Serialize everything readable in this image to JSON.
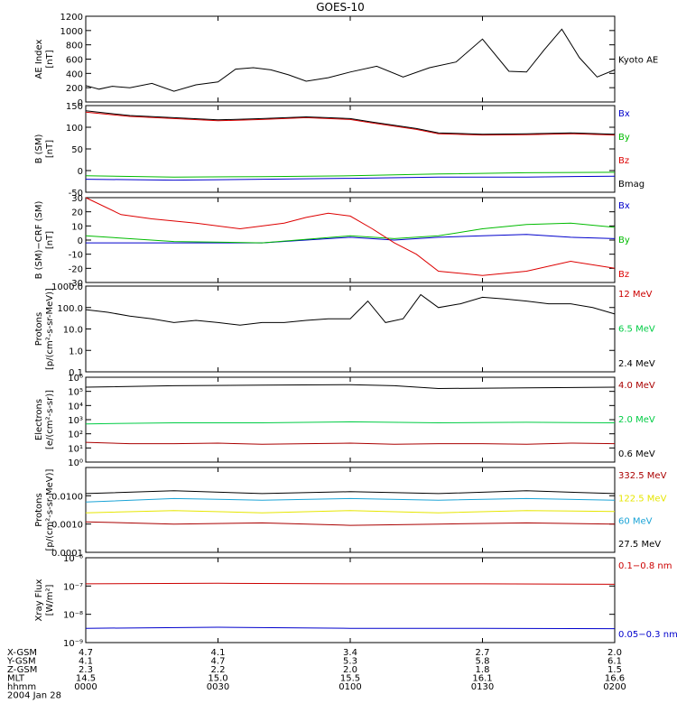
{
  "title": "GOES-10",
  "panels": [
    {
      "id": "ae",
      "ylabel": [
        "AE Index",
        "[nT]"
      ],
      "scale": "linear",
      "ylim": [
        0,
        1200
      ],
      "ticks": [
        "0",
        "200",
        "400",
        "600",
        "800",
        "1000",
        "1200"
      ],
      "tickvals": [
        0,
        200,
        400,
        600,
        800,
        1000,
        1200
      ],
      "legend": [
        {
          "text": "Kyoto AE",
          "color": "#000000"
        }
      ]
    },
    {
      "id": "bsm",
      "ylabel": [
        "B (SM)",
        "[nT]"
      ],
      "scale": "linear",
      "ylim": [
        -50,
        150
      ],
      "ticks": [
        "-50",
        "0",
        "50",
        "100",
        "150"
      ],
      "tickvals": [
        -50,
        0,
        50,
        100,
        150
      ],
      "legend": [
        {
          "text": "Bx",
          "color": "#0000cc"
        },
        {
          "text": "By",
          "color": "#00bb00"
        },
        {
          "text": "Bz",
          "color": "#dd0000"
        },
        {
          "text": "Bmag",
          "color": "#000000"
        }
      ]
    },
    {
      "id": "bsmcrf",
      "ylabel": [
        "B (SM)−CRF (SM)",
        "[nT]"
      ],
      "scale": "linear",
      "ylim": [
        -30,
        30
      ],
      "ticks": [
        "-30",
        "-20",
        "-10",
        "0",
        "10",
        "20",
        "30"
      ],
      "tickvals": [
        -30,
        -20,
        -10,
        0,
        10,
        20,
        30
      ],
      "legend": [
        {
          "text": "Bx",
          "color": "#0000cc"
        },
        {
          "text": "By",
          "color": "#00bb00"
        },
        {
          "text": "Bz",
          "color": "#dd0000"
        }
      ]
    },
    {
      "id": "protons_lo",
      "ylabel": [
        "Protons",
        "[p/(cm²-s-sr-MeV)]"
      ],
      "scale": "log",
      "ylim": [
        0.1,
        1000
      ],
      "ticks": [
        "0.1",
        "1.0",
        "10.0",
        "100.0",
        "1000.0"
      ],
      "tickvals": [
        0.1,
        1,
        10,
        100,
        1000
      ],
      "legend": [
        {
          "text": "12 MeV",
          "color": "#cc0000"
        },
        {
          "text": "6.5 MeV",
          "color": "#00cc44"
        },
        {
          "text": "2.4 MeV",
          "color": "#000000"
        }
      ]
    },
    {
      "id": "electrons",
      "ylabel": [
        "Electrons",
        "[e/(cm²-s-sr)]"
      ],
      "scale": "log",
      "ylim": [
        1,
        1000000
      ],
      "ticks": [
        "10⁰",
        "10¹",
        "10²",
        "10³",
        "10⁴",
        "10⁵",
        "10⁶"
      ],
      "tickvals": [
        1,
        10,
        100,
        1000,
        10000,
        100000,
        1000000
      ],
      "legend": [
        {
          "text": "4.0 MeV",
          "color": "#aa0000"
        },
        {
          "text": "2.0 MeV",
          "color": "#00cc44"
        },
        {
          "text": "0.6 MeV",
          "color": "#000000"
        }
      ]
    },
    {
      "id": "protons_hi",
      "ylabel": [
        "Protons",
        "[p/(cm²-s-sr-MeV)]"
      ],
      "scale": "log",
      "ylim": [
        0.0001,
        0.1
      ],
      "ticks": [
        "0.0001",
        "0.0010",
        "0.0100"
      ],
      "tickvals": [
        0.0001,
        0.001,
        0.01
      ],
      "legend": [
        {
          "text": "332.5 MeV",
          "color": "#aa0000"
        },
        {
          "text": "122.5 MeV",
          "color": "#e6e600"
        },
        {
          "text": "60 MeV",
          "color": "#1aa3d6"
        },
        {
          "text": "27.5 MeV",
          "color": "#000000"
        }
      ]
    },
    {
      "id": "xray",
      "ylabel": [
        "Xray Flux",
        "[W/m²]"
      ],
      "scale": "log",
      "ylim": [
        1e-09,
        1e-06
      ],
      "ticks": [
        "10⁻⁹",
        "10⁻⁸",
        "10⁻⁷",
        "10⁻⁶"
      ],
      "tickvals": [
        1e-09,
        1e-08,
        1e-07,
        1e-06
      ],
      "legend": [
        {
          "text": "0.1−0.8 nm",
          "color": "#cc0000"
        },
        {
          "text": "0.05−0.3 nm",
          "color": "#0000cc"
        }
      ]
    }
  ],
  "xaxis": {
    "rows": [
      {
        "label": "X-GSM",
        "values": [
          "4.7",
          "4.1",
          "3.4",
          "2.7",
          "2.0"
        ]
      },
      {
        "label": "Y-GSM",
        "values": [
          "4.1",
          "4.7",
          "5.3",
          "5.8",
          "6.1"
        ]
      },
      {
        "label": "Z-GSM",
        "values": [
          "2.3",
          "2.2",
          "2.0",
          "1.8",
          "1.5"
        ]
      },
      {
        "label": "MLT",
        "values": [
          "14.5",
          "15.0",
          "15.5",
          "16.1",
          "16.6"
        ]
      },
      {
        "label": "hhmm",
        "values": [
          "0000",
          "0030",
          "0100",
          "0130",
          "0200"
        ]
      }
    ],
    "date": "2004 Jan 28"
  },
  "chart_data": [
    {
      "type": "line",
      "title": "GOES-10",
      "ylabel": "AE Index [nT]",
      "xlabel": "hhmm",
      "xlim": [
        0,
        120
      ],
      "x_unit": "minutes after 0000 UT",
      "ylim": [
        0,
        1200
      ],
      "series": [
        {
          "name": "Kyoto AE",
          "color": "#000000",
          "x": [
            0,
            3,
            6,
            10,
            15,
            20,
            25,
            30,
            34,
            38,
            42,
            46,
            50,
            55,
            60,
            66,
            72,
            78,
            84,
            90,
            96,
            100,
            104,
            108,
            112,
            116,
            120
          ],
          "values": [
            230,
            180,
            220,
            200,
            260,
            150,
            240,
            280,
            460,
            480,
            450,
            380,
            290,
            340,
            420,
            500,
            350,
            480,
            560,
            880,
            430,
            420,
            730,
            1020,
            620,
            350,
            450
          ]
        }
      ]
    },
    {
      "type": "line",
      "ylabel": "B (SM) [nT]",
      "xlim": [
        0,
        120
      ],
      "ylim": [
        -50,
        150
      ],
      "series": [
        {
          "name": "Bx",
          "color": "#0000cc",
          "x": [
            0,
            20,
            40,
            60,
            80,
            100,
            120
          ],
          "values": [
            -20,
            -22,
            -20,
            -18,
            -15,
            -15,
            -13
          ]
        },
        {
          "name": "By",
          "color": "#00bb00",
          "x": [
            0,
            20,
            40,
            60,
            80,
            100,
            120
          ],
          "values": [
            -12,
            -15,
            -14,
            -12,
            -8,
            -5,
            -4
          ]
        },
        {
          "name": "Bz",
          "color": "#dd0000",
          "x": [
            0,
            10,
            20,
            30,
            40,
            50,
            55,
            60,
            65,
            75,
            80,
            90,
            100,
            110,
            120
          ],
          "values": [
            135,
            125,
            120,
            115,
            118,
            122,
            120,
            118,
            110,
            95,
            85,
            82,
            83,
            85,
            82
          ]
        },
        {
          "name": "Bmag",
          "color": "#000000",
          "x": [
            0,
            10,
            20,
            30,
            40,
            50,
            55,
            60,
            65,
            75,
            80,
            90,
            100,
            110,
            120
          ],
          "values": [
            138,
            127,
            122,
            117,
            120,
            124,
            122,
            120,
            112,
            97,
            87,
            84,
            85,
            87,
            84
          ]
        }
      ]
    },
    {
      "type": "line",
      "ylabel": "B (SM)−CRF (SM) [nT]",
      "xlim": [
        0,
        120
      ],
      "ylim": [
        -30,
        30
      ],
      "series": [
        {
          "name": "Bx",
          "color": "#0000cc",
          "x": [
            0,
            20,
            40,
            60,
            70,
            80,
            90,
            100,
            110,
            120
          ],
          "values": [
            -2,
            -2,
            -2,
            2,
            0,
            2,
            3,
            4,
            2,
            1
          ]
        },
        {
          "name": "By",
          "color": "#00bb00",
          "x": [
            0,
            20,
            40,
            60,
            70,
            80,
            90,
            100,
            110,
            120
          ],
          "values": [
            3,
            -1,
            -2,
            3,
            1,
            3,
            8,
            11,
            12,
            9
          ]
        },
        {
          "name": "Bz",
          "color": "#dd0000",
          "x": [
            0,
            8,
            15,
            25,
            35,
            45,
            50,
            55,
            60,
            65,
            70,
            75,
            80,
            90,
            100,
            110,
            120
          ],
          "values": [
            30,
            18,
            15,
            12,
            8,
            12,
            16,
            19,
            17,
            8,
            -2,
            -10,
            -22,
            -25,
            -22,
            -15,
            -20
          ]
        }
      ]
    },
    {
      "type": "line",
      "ylabel": "Protons [p/(cm²-s-sr-MeV)]",
      "y_scale": "log",
      "xlim": [
        0,
        120
      ],
      "ylim": [
        0.1,
        1000
      ],
      "series": [
        {
          "name": "2.4 MeV",
          "color": "#000000",
          "x": [
            0,
            5,
            10,
            15,
            20,
            25,
            30,
            35,
            40,
            45,
            50,
            55,
            60,
            64,
            68,
            72,
            76,
            80,
            85,
            90,
            95,
            100,
            105,
            110,
            115,
            120
          ],
          "values": [
            80,
            60,
            40,
            30,
            20,
            25,
            20,
            15,
            20,
            20,
            25,
            30,
            30,
            200,
            20,
            30,
            400,
            100,
            150,
            300,
            250,
            200,
            150,
            150,
            100,
            50
          ]
        },
        {
          "name": "12 MeV",
          "color": "#cc0000",
          "x": [],
          "values": []
        },
        {
          "name": "6.5 MeV",
          "color": "#00cc44",
          "x": [],
          "values": []
        }
      ]
    },
    {
      "type": "line",
      "ylabel": "Electrons [e/(cm²-s-sr)]",
      "y_scale": "log",
      "xlim": [
        0,
        120
      ],
      "ylim": [
        1,
        1000000
      ],
      "series": [
        {
          "name": "4.0 MeV",
          "color": "#aa0000",
          "x": [
            0,
            10,
            20,
            30,
            40,
            50,
            60,
            70,
            80,
            90,
            100,
            110,
            120
          ],
          "values": [
            25,
            20,
            20,
            22,
            18,
            20,
            22,
            18,
            20,
            20,
            18,
            22,
            20
          ]
        },
        {
          "name": "2.0 MeV",
          "color": "#00cc44",
          "x": [
            0,
            20,
            40,
            60,
            80,
            100,
            120
          ],
          "values": [
            500,
            600,
            600,
            700,
            600,
            650,
            600
          ]
        },
        {
          "name": "0.6 MeV",
          "color": "#000000",
          "x": [
            0,
            20,
            40,
            60,
            70,
            80,
            100,
            120
          ],
          "values": [
            200000,
            250000,
            280000,
            300000,
            250000,
            160000,
            180000,
            200000
          ]
        }
      ]
    },
    {
      "type": "line",
      "ylabel": "Protons [p/(cm²-s-sr-MeV)]",
      "y_scale": "log",
      "xlim": [
        0,
        120
      ],
      "ylim": [
        0.0001,
        0.1
      ],
      "series": [
        {
          "name": "332.5 MeV",
          "color": "#aa0000",
          "x": [
            0,
            20,
            40,
            60,
            80,
            100,
            120
          ],
          "values": [
            0.0012,
            0.001,
            0.0011,
            0.0009,
            0.001,
            0.0011,
            0.001
          ]
        },
        {
          "name": "122.5 MeV",
          "color": "#e6e600",
          "x": [
            0,
            20,
            40,
            60,
            80,
            100,
            120
          ],
          "values": [
            0.0025,
            0.003,
            0.0025,
            0.003,
            0.0025,
            0.003,
            0.0028
          ]
        },
        {
          "name": "60 MeV",
          "color": "#1aa3d6",
          "x": [
            0,
            20,
            40,
            60,
            80,
            100,
            120
          ],
          "values": [
            0.006,
            0.008,
            0.007,
            0.008,
            0.007,
            0.008,
            0.007
          ]
        },
        {
          "name": "27.5 MeV",
          "color": "#000000",
          "x": [
            0,
            20,
            40,
            60,
            80,
            100,
            120
          ],
          "values": [
            0.012,
            0.015,
            0.012,
            0.014,
            0.012,
            0.015,
            0.012
          ]
        }
      ]
    },
    {
      "type": "line",
      "ylabel": "Xray Flux [W/m²]",
      "y_scale": "log",
      "xlim": [
        0,
        120
      ],
      "ylim": [
        1e-09,
        1e-06
      ],
      "series": [
        {
          "name": "0.1−0.8 nm",
          "color": "#cc0000",
          "x": [
            0,
            30,
            60,
            90,
            120
          ],
          "values": [
            1.2e-07,
            1.25e-07,
            1.2e-07,
            1.2e-07,
            1.15e-07
          ]
        },
        {
          "name": "0.05−0.3 nm",
          "color": "#0000cc",
          "x": [
            0,
            30,
            60,
            90,
            120
          ],
          "values": [
            3.2e-09,
            3.5e-09,
            3.2e-09,
            3.2e-09,
            3.1e-09
          ]
        }
      ]
    }
  ]
}
